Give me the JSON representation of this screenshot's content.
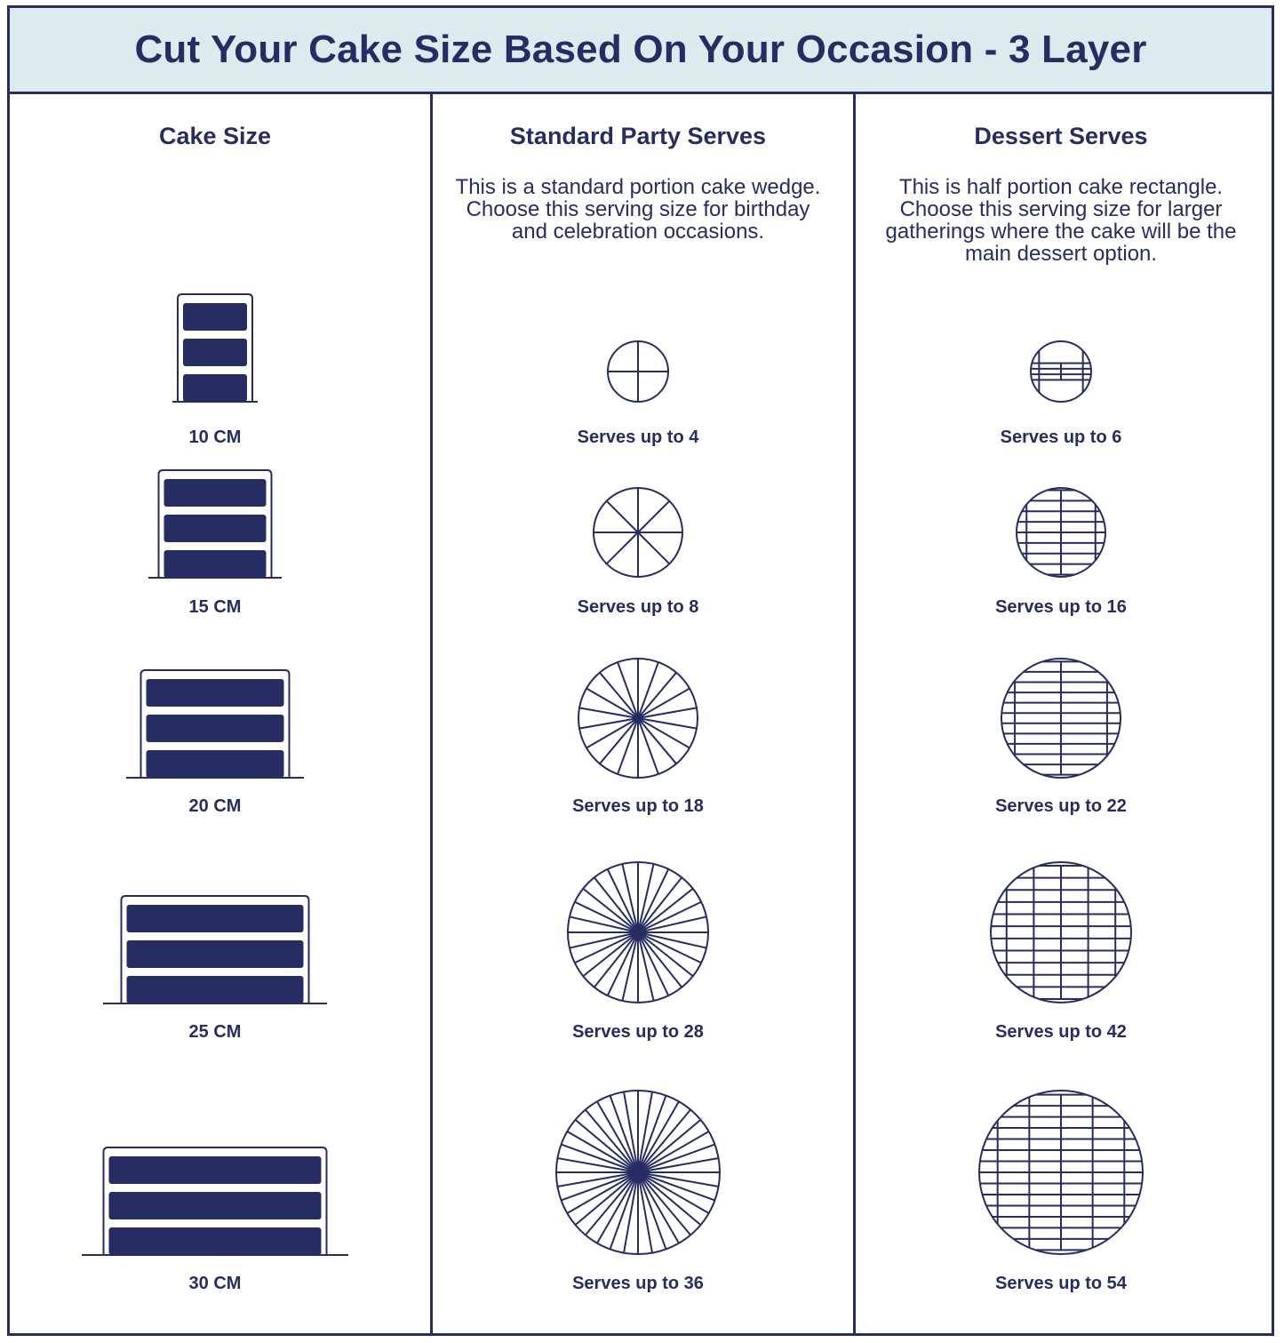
{
  "title": "Cut Your Cake Size Based On Your Occasion - 3 Layer",
  "columns": [
    {
      "heading": "Cake Size",
      "description": ""
    },
    {
      "heading": "Standard Party Serves",
      "description": "This is a standard portion cake wedge. Choose this serving size for birthday and celebration occasions."
    },
    {
      "heading": "Dessert Serves",
      "description": "This is half portion cake rectangle. Choose this serving size for larger gatherings where the cake will be the main dessert option."
    }
  ],
  "rows": [
    {
      "size": "10 CM",
      "party": "Serves up to 4",
      "dessert": "Serves up to 6",
      "party_slices": 4,
      "dessert_pieces": 6
    },
    {
      "size": "15 CM",
      "party": "Serves up to 8",
      "dessert": "Serves up to 16",
      "party_slices": 8,
      "dessert_pieces": 16
    },
    {
      "size": "20 CM",
      "party": "Serves up to 18",
      "dessert": "Serves up to 22",
      "party_slices": 18,
      "dessert_pieces": 22
    },
    {
      "size": "25 CM",
      "party": "Serves up to 28",
      "dessert": "Serves up to 42",
      "party_slices": 28,
      "dessert_pieces": 42
    },
    {
      "size": "30 CM",
      "party": "Serves up to 36",
      "dessert": "Serves up to 54",
      "party_slices": 36,
      "dessert_pieces": 54
    }
  ],
  "colors": {
    "ink": "#272d63",
    "header_bg": "#dcebed",
    "background": "#ffffff"
  }
}
